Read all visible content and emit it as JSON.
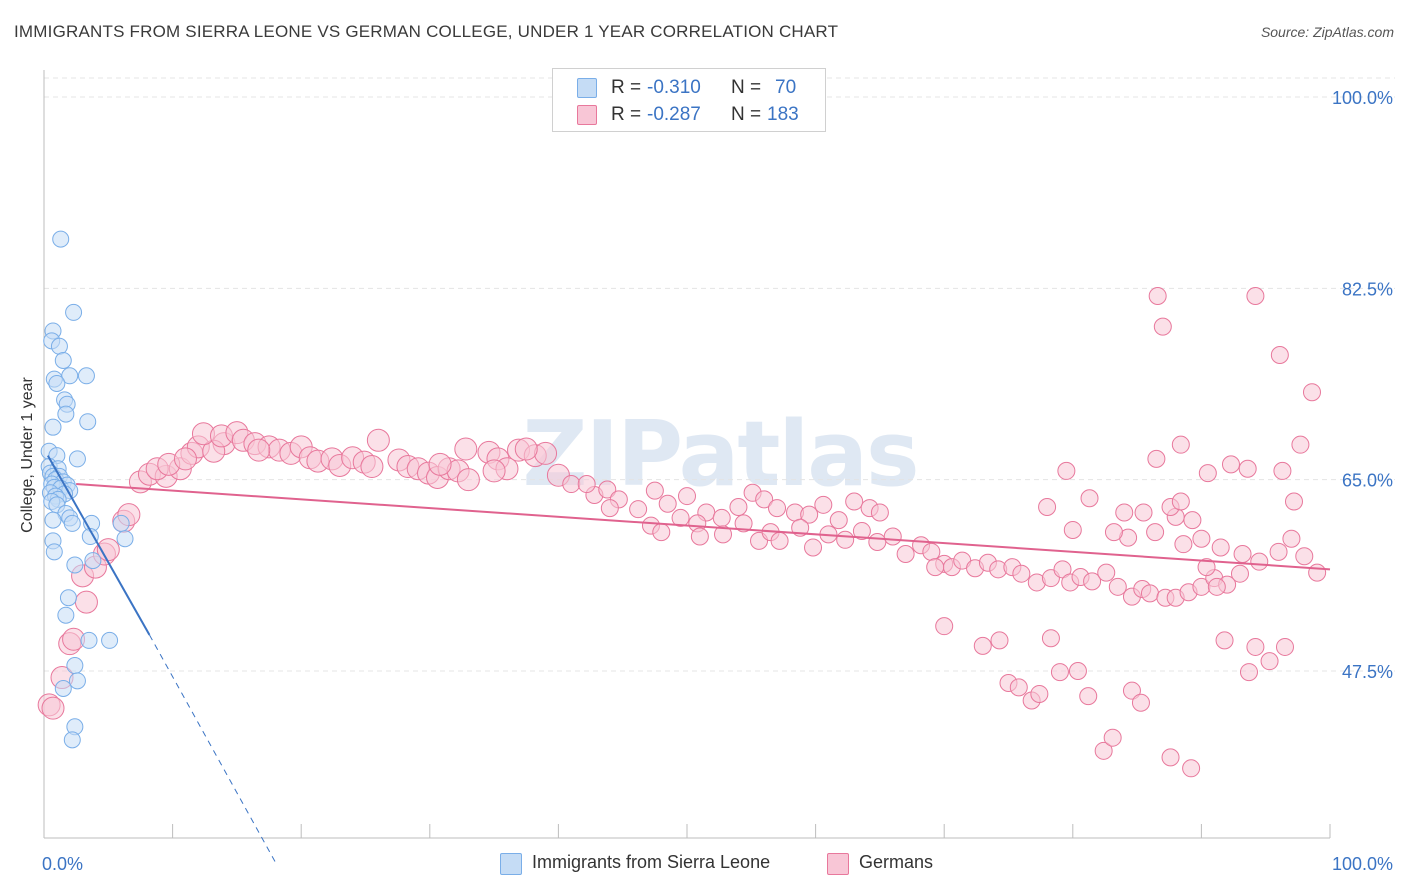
{
  "chart_data": {
    "type": "scatter",
    "title": "IMMIGRANTS FROM SIERRA LEONE VS GERMAN COLLEGE, UNDER 1 YEAR CORRELATION CHART",
    "source": "Source: ZipAtlas.com",
    "xlabel": "",
    "ylabel": "College, Under 1 year",
    "xlim": [
      0,
      100
    ],
    "ylim": [
      30,
      103
    ],
    "x_tick_labels": [
      "0.0%",
      "100.0%"
    ],
    "y_ticks": [
      47.5,
      65.0,
      82.5,
      100.0
    ],
    "y_tick_labels": [
      "47.5%",
      "65.0%",
      "82.5%",
      "100.0%"
    ],
    "watermark": "ZIPatlas",
    "legend": {
      "rows": [
        {
          "r_label": "R =",
          "r_value": "-0.310",
          "n_label": "N =",
          "n_value": "70"
        },
        {
          "r_label": "R =",
          "r_value": "-0.287",
          "n_label": "N =",
          "n_value": "183"
        }
      ]
    },
    "series": [
      {
        "name": "Immigrants from Sierra Leone",
        "color": "#7aaee8",
        "fill": "#c5dcf5",
        "trend": {
          "x0": 0.3,
          "y0": 67.2,
          "x1": 8.2,
          "y1": 50.8,
          "dash_x1": 18.0,
          "dash_y1": 30.0
        },
        "points": [
          [
            1.3,
            87.0
          ],
          [
            2.3,
            80.3
          ],
          [
            0.7,
            78.6
          ],
          [
            0.6,
            77.7
          ],
          [
            1.2,
            77.2
          ],
          [
            1.5,
            75.9
          ],
          [
            2.0,
            74.5
          ],
          [
            3.3,
            74.5
          ],
          [
            0.8,
            74.2
          ],
          [
            1.0,
            73.8
          ],
          [
            1.6,
            72.3
          ],
          [
            1.8,
            71.9
          ],
          [
            1.7,
            71.0
          ],
          [
            3.4,
            70.3
          ],
          [
            0.7,
            69.8
          ],
          [
            0.4,
            67.6
          ],
          [
            1.0,
            67.2
          ],
          [
            2.6,
            66.9
          ],
          [
            0.4,
            66.2
          ],
          [
            1.1,
            66.0
          ],
          [
            0.5,
            65.6
          ],
          [
            0.7,
            65.3
          ],
          [
            1.2,
            65.3
          ],
          [
            0.9,
            65.0
          ],
          [
            1.5,
            64.8
          ],
          [
            0.6,
            64.6
          ],
          [
            1.8,
            64.5
          ],
          [
            0.8,
            64.3
          ],
          [
            1.3,
            64.2
          ],
          [
            2.0,
            64.0
          ],
          [
            0.5,
            63.8
          ],
          [
            1.6,
            63.7
          ],
          [
            0.9,
            63.5
          ],
          [
            1.1,
            63.2
          ],
          [
            0.6,
            63.0
          ],
          [
            1.0,
            62.7
          ],
          [
            1.7,
            61.9
          ],
          [
            2.0,
            61.5
          ],
          [
            0.7,
            61.3
          ],
          [
            2.2,
            61.0
          ],
          [
            3.7,
            61.0
          ],
          [
            6.0,
            61.0
          ],
          [
            3.6,
            59.8
          ],
          [
            0.7,
            59.4
          ],
          [
            6.3,
            59.6
          ],
          [
            0.8,
            58.4
          ],
          [
            2.4,
            57.2
          ],
          [
            3.8,
            57.6
          ],
          [
            1.9,
            54.2
          ],
          [
            1.7,
            52.6
          ],
          [
            3.5,
            50.3
          ],
          [
            5.1,
            50.3
          ],
          [
            2.4,
            48.0
          ],
          [
            2.6,
            46.6
          ],
          [
            1.5,
            45.9
          ],
          [
            2.4,
            42.4
          ],
          [
            2.2,
            41.2
          ]
        ]
      },
      {
        "name": "Germans",
        "color": "#e8789c",
        "fill": "#f8c6d6",
        "trend": {
          "x0": 2.5,
          "y0": 64.6,
          "x1": 100.0,
          "y1": 56.8
        },
        "points": [
          [
            0.4,
            44.4
          ],
          [
            0.7,
            44.1
          ],
          [
            1.4,
            46.9
          ],
          [
            2.0,
            50.0
          ],
          [
            2.3,
            50.4
          ],
          [
            3.3,
            53.8
          ],
          [
            3.0,
            56.2
          ],
          [
            4.0,
            57.0
          ],
          [
            4.7,
            58.2
          ],
          [
            5.0,
            58.6
          ],
          [
            6.2,
            61.2
          ],
          [
            6.6,
            61.8
          ],
          [
            7.5,
            64.8
          ],
          [
            8.2,
            65.5
          ],
          [
            9.5,
            65.3
          ],
          [
            8.8,
            66.0
          ],
          [
            10.6,
            66.0
          ],
          [
            9.7,
            66.4
          ],
          [
            11.5,
            67.4
          ],
          [
            12.0,
            68.0
          ],
          [
            14.0,
            68.3
          ],
          [
            11.0,
            66.9
          ],
          [
            13.2,
            67.6
          ],
          [
            12.4,
            69.2
          ],
          [
            13.8,
            69.0
          ],
          [
            15.0,
            69.3
          ],
          [
            15.5,
            68.6
          ],
          [
            16.4,
            68.3
          ],
          [
            17.5,
            68.0
          ],
          [
            18.3,
            67.7
          ],
          [
            16.7,
            67.7
          ],
          [
            19.2,
            67.4
          ],
          [
            20.0,
            68.0
          ],
          [
            20.7,
            67.0
          ],
          [
            21.3,
            66.7
          ],
          [
            22.4,
            66.9
          ],
          [
            23.0,
            66.3
          ],
          [
            24.0,
            67.0
          ],
          [
            24.9,
            66.6
          ],
          [
            25.5,
            66.2
          ],
          [
            26.0,
            68.6
          ],
          [
            27.6,
            66.8
          ],
          [
            28.3,
            66.2
          ],
          [
            29.1,
            66.0
          ],
          [
            29.9,
            65.6
          ],
          [
            30.6,
            65.2
          ],
          [
            31.5,
            66.0
          ],
          [
            32.2,
            65.8
          ],
          [
            33.0,
            65.0
          ],
          [
            34.6,
            67.5
          ],
          [
            35.3,
            66.9
          ],
          [
            36.0,
            66.0
          ],
          [
            36.9,
            67.7
          ],
          [
            38.2,
            67.2
          ],
          [
            39.0,
            67.4
          ],
          [
            37.5,
            67.8
          ],
          [
            30.8,
            66.4
          ],
          [
            32.8,
            67.8
          ],
          [
            35.0,
            65.8
          ],
          [
            40.0,
            65.4
          ],
          [
            41.0,
            64.6
          ],
          [
            42.8,
            63.6
          ],
          [
            43.8,
            64.1
          ],
          [
            44.7,
            63.2
          ],
          [
            46.2,
            62.3
          ],
          [
            47.5,
            64.0
          ],
          [
            48.5,
            62.8
          ],
          [
            50.0,
            63.5
          ],
          [
            51.5,
            62.0
          ],
          [
            52.7,
            61.5
          ],
          [
            54.0,
            62.5
          ],
          [
            55.1,
            63.8
          ],
          [
            56.0,
            63.2
          ],
          [
            57.0,
            62.4
          ],
          [
            58.4,
            62.0
          ],
          [
            59.5,
            61.8
          ],
          [
            60.6,
            62.7
          ],
          [
            61.8,
            61.3
          ],
          [
            63.0,
            63.0
          ],
          [
            64.2,
            62.4
          ],
          [
            65.0,
            62.0
          ],
          [
            42.2,
            64.6
          ],
          [
            44.0,
            62.4
          ],
          [
            47.2,
            60.8
          ],
          [
            48.0,
            60.2
          ],
          [
            49.5,
            61.5
          ],
          [
            50.8,
            61.0
          ],
          [
            51.0,
            59.8
          ],
          [
            52.8,
            60.0
          ],
          [
            54.4,
            61.0
          ],
          [
            55.6,
            59.4
          ],
          [
            56.5,
            60.2
          ],
          [
            57.2,
            59.4
          ],
          [
            58.8,
            60.6
          ],
          [
            59.8,
            58.8
          ],
          [
            61.0,
            60.0
          ],
          [
            62.3,
            59.5
          ],
          [
            63.6,
            60.3
          ],
          [
            64.8,
            59.3
          ],
          [
            66.0,
            59.8
          ],
          [
            67.0,
            58.2
          ],
          [
            68.2,
            59.0
          ],
          [
            69.0,
            58.4
          ],
          [
            70.0,
            57.3
          ],
          [
            70.6,
            57.0
          ],
          [
            71.4,
            57.6
          ],
          [
            72.4,
            56.9
          ],
          [
            73.4,
            57.4
          ],
          [
            74.2,
            56.8
          ],
          [
            75.3,
            57.0
          ],
          [
            76.0,
            56.4
          ],
          [
            77.2,
            55.6
          ],
          [
            78.3,
            56.0
          ],
          [
            79.2,
            56.8
          ],
          [
            79.8,
            55.6
          ],
          [
            80.6,
            56.1
          ],
          [
            81.5,
            55.7
          ],
          [
            82.6,
            56.5
          ],
          [
            83.5,
            55.2
          ],
          [
            84.6,
            54.3
          ],
          [
            85.4,
            55.0
          ],
          [
            86.0,
            54.6
          ],
          [
            87.2,
            54.2
          ],
          [
            88.0,
            54.2
          ],
          [
            89.0,
            54.7
          ],
          [
            90.0,
            55.2
          ],
          [
            91.0,
            56.0
          ],
          [
            92.0,
            55.4
          ],
          [
            93.0,
            56.4
          ],
          [
            84.3,
            59.7
          ],
          [
            86.4,
            60.2
          ],
          [
            88.0,
            61.6
          ],
          [
            89.3,
            61.3
          ],
          [
            90.0,
            59.6
          ],
          [
            91.5,
            58.8
          ],
          [
            93.2,
            58.2
          ],
          [
            94.5,
            57.5
          ],
          [
            96.0,
            58.4
          ],
          [
            97.0,
            59.6
          ],
          [
            98.0,
            58.0
          ],
          [
            99.0,
            56.5
          ],
          [
            78.0,
            62.5
          ],
          [
            79.5,
            65.8
          ],
          [
            80.0,
            60.4
          ],
          [
            81.3,
            63.3
          ],
          [
            83.2,
            60.2
          ],
          [
            84.0,
            62.0
          ],
          [
            85.5,
            62.0
          ],
          [
            86.5,
            66.9
          ],
          [
            87.6,
            62.5
          ],
          [
            88.4,
            63.0
          ],
          [
            90.5,
            65.6
          ],
          [
            92.3,
            66.4
          ],
          [
            93.6,
            66.0
          ],
          [
            96.3,
            65.8
          ],
          [
            97.7,
            68.2
          ],
          [
            69.3,
            57.0
          ],
          [
            70.0,
            51.6
          ],
          [
            73.0,
            49.8
          ],
          [
            74.3,
            50.3
          ],
          [
            75.0,
            46.4
          ],
          [
            75.8,
            46.0
          ],
          [
            76.8,
            44.8
          ],
          [
            77.4,
            45.4
          ],
          [
            78.3,
            50.5
          ],
          [
            79.0,
            47.4
          ],
          [
            80.4,
            47.5
          ],
          [
            81.2,
            45.2
          ],
          [
            82.4,
            40.2
          ],
          [
            83.1,
            41.4
          ],
          [
            84.6,
            45.7
          ],
          [
            85.3,
            44.6
          ],
          [
            87.6,
            39.6
          ],
          [
            88.6,
            59.1
          ],
          [
            89.2,
            38.6
          ],
          [
            90.4,
            57.0
          ],
          [
            91.2,
            55.2
          ],
          [
            91.8,
            50.3
          ],
          [
            93.7,
            47.4
          ],
          [
            94.2,
            49.7
          ],
          [
            95.3,
            48.4
          ],
          [
            96.5,
            49.7
          ],
          [
            97.2,
            63.0
          ],
          [
            86.6,
            81.8
          ],
          [
            87.0,
            79.0
          ],
          [
            94.2,
            81.8
          ],
          [
            96.1,
            76.4
          ],
          [
            98.6,
            73.0
          ],
          [
            88.4,
            68.2
          ]
        ]
      }
    ]
  },
  "bottom_legend": [
    "Immigrants from Sierra Leone",
    "Germans"
  ]
}
